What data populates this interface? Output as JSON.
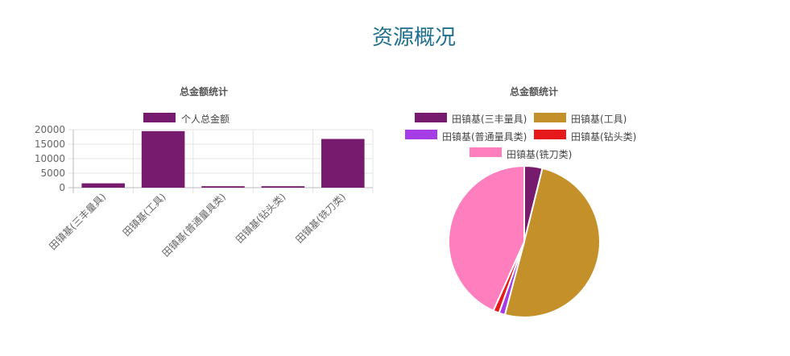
{
  "page": {
    "title": "资源概况"
  },
  "chart_data": [
    {
      "type": "bar",
      "title": "总金额统计",
      "categories": [
        "田镇基(三丰量具)",
        "田镇基(工具)",
        "田镇基(普通量具类)",
        "田镇基(钻头类)",
        "田镇基(铣刀类)"
      ],
      "series": [
        {
          "name": "个人总金额",
          "values": [
            1500,
            19500,
            500,
            500,
            16800
          ],
          "color": "#771b6f"
        }
      ],
      "yticks": [
        0,
        5000,
        10000,
        15000,
        20000
      ],
      "ylim": [
        0,
        20000
      ],
      "grid": true,
      "legend": "top"
    },
    {
      "type": "pie",
      "title": "总金额统计",
      "labels": [
        "田镇基(三丰量具)",
        "田镇基(工具)",
        "田镇基(普通量具类)",
        "田镇基(钻头类)",
        "田镇基(铣刀类)"
      ],
      "values": [
        1500,
        19500,
        500,
        500,
        16800
      ],
      "colors": [
        "#771b6f",
        "#c39029",
        "#a53ce6",
        "#e61a1a",
        "#ff7fbe"
      ],
      "legend": "top"
    }
  ]
}
